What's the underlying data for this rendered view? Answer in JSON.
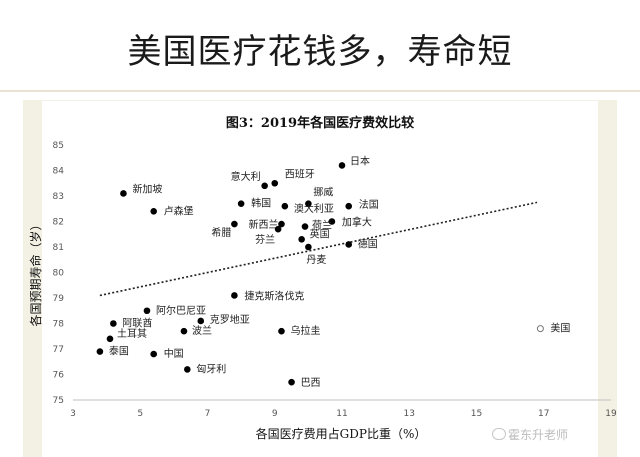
{
  "page": {
    "headline": "美国医疗花钱多，寿命短",
    "watermark": "霍东升老师"
  },
  "chart_data": {
    "type": "scatter",
    "title": "图3：2019年各国医疗费效比较",
    "xlabel": "各国医疗费用占GDP比重（%）",
    "ylabel": "各国预期寿命（岁）",
    "xlim": [
      3,
      19
    ],
    "ylim": [
      75,
      85
    ],
    "xticks": [
      3,
      5,
      7,
      9,
      11,
      13,
      15,
      17,
      19
    ],
    "yticks": [
      75,
      76,
      77,
      78,
      79,
      80,
      81,
      82,
      83,
      84,
      85
    ],
    "grid": false,
    "trendline": {
      "style": "dotted",
      "from": [
        3.8,
        79.1
      ],
      "to": [
        16.8,
        82.75
      ]
    },
    "points": [
      {
        "name": "日本",
        "x": 11.0,
        "y": 84.2
      },
      {
        "name": "西班牙",
        "x": 9.0,
        "y": 83.5
      },
      {
        "name": "意大利",
        "x": 8.7,
        "y": 83.4
      },
      {
        "name": "新加坡",
        "x": 4.5,
        "y": 83.1
      },
      {
        "name": "挪威",
        "x": 10.0,
        "y": 82.7
      },
      {
        "name": "韩国",
        "x": 8.0,
        "y": 82.7
      },
      {
        "name": "法国",
        "x": 11.2,
        "y": 82.6
      },
      {
        "name": "澳大利亚",
        "x": 9.3,
        "y": 82.6
      },
      {
        "name": "卢森堡",
        "x": 5.4,
        "y": 82.4
      },
      {
        "name": "加拿大",
        "x": 10.7,
        "y": 82.0
      },
      {
        "name": "新西兰",
        "x": 9.2,
        "y": 81.9
      },
      {
        "name": "希腊",
        "x": 7.8,
        "y": 81.9
      },
      {
        "name": "荷兰",
        "x": 9.9,
        "y": 81.8
      },
      {
        "name": "芬兰",
        "x": 9.1,
        "y": 81.7
      },
      {
        "name": "英国",
        "x": 9.8,
        "y": 81.3
      },
      {
        "name": "德国",
        "x": 11.2,
        "y": 81.1
      },
      {
        "name": "丹麦",
        "x": 10.0,
        "y": 81.0
      },
      {
        "name": "捷克斯洛伐克",
        "x": 7.8,
        "y": 79.1
      },
      {
        "name": "阿尔巴尼亚",
        "x": 5.2,
        "y": 78.5
      },
      {
        "name": "克罗地亚",
        "x": 6.8,
        "y": 78.1
      },
      {
        "name": "阿联酋",
        "x": 4.2,
        "y": 78.0
      },
      {
        "name": "波兰",
        "x": 6.3,
        "y": 77.7
      },
      {
        "name": "乌拉圭",
        "x": 9.2,
        "y": 77.7
      },
      {
        "name": "土耳其",
        "x": 4.1,
        "y": 77.4
      },
      {
        "name": "泰国",
        "x": 3.8,
        "y": 76.9
      },
      {
        "name": "中国",
        "x": 5.4,
        "y": 76.8
      },
      {
        "name": "匈牙利",
        "x": 6.4,
        "y": 76.2
      },
      {
        "name": "巴西",
        "x": 9.5,
        "y": 75.7
      },
      {
        "name": "美国",
        "x": 16.9,
        "y": 77.8,
        "hollow": true
      }
    ]
  }
}
